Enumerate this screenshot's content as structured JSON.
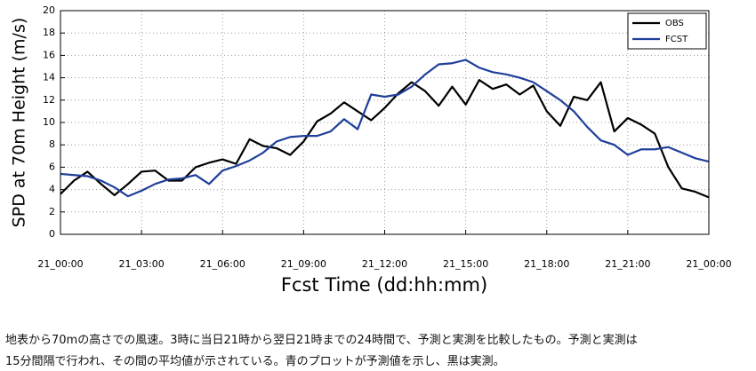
{
  "chart_data": {
    "type": "line",
    "ylabel": "SPD at 70m Height (m/s)",
    "xlabel": "Fcst Time (dd:hh:mm)",
    "x": [
      0,
      0.5,
      1,
      1.5,
      2,
      2.5,
      3,
      3.5,
      4,
      4.5,
      5,
      5.5,
      6,
      6.5,
      7,
      7.5,
      8,
      8.5,
      9,
      9.5,
      10,
      10.5,
      11,
      11.5,
      12,
      12.5,
      13,
      13.5,
      14,
      14.5,
      15,
      15.5,
      16,
      16.5,
      17,
      17.5,
      18,
      18.5,
      19,
      19.5,
      20,
      20.5,
      21,
      21.5,
      22,
      22.5,
      23,
      23.5,
      24
    ],
    "series": [
      {
        "name": "OBS",
        "color": "#000000",
        "values": [
          3.6,
          4.8,
          5.6,
          4.5,
          3.5,
          4.5,
          5.6,
          5.7,
          4.8,
          4.8,
          6.0,
          6.4,
          6.7,
          6.3,
          8.5,
          7.9,
          7.7,
          7.1,
          8.3,
          10.1,
          10.8,
          11.8,
          11.0,
          10.2,
          11.3,
          12.6,
          13.6,
          12.8,
          11.5,
          13.2,
          11.6,
          13.8,
          13.0,
          13.4,
          12.5,
          13.3,
          11.0,
          9.7,
          12.3,
          12.0,
          13.6,
          9.2,
          10.4,
          9.8,
          9.0,
          6.0,
          4.1,
          3.8,
          3.3
        ]
      },
      {
        "name": "FCST",
        "color": "#1f3f99",
        "values": [
          5.4,
          5.3,
          5.2,
          4.8,
          4.2,
          3.4,
          3.9,
          4.5,
          4.9,
          5.0,
          5.3,
          4.5,
          5.7,
          6.1,
          6.6,
          7.3,
          8.3,
          8.7,
          8.8,
          8.8,
          9.2,
          10.3,
          9.4,
          12.5,
          12.3,
          12.5,
          13.2,
          14.3,
          15.2,
          15.3,
          15.6,
          14.9,
          14.5,
          14.3,
          14.0,
          13.6,
          12.8,
          12.0,
          11.0,
          9.6,
          8.4,
          8.0,
          7.1,
          7.6,
          7.6,
          7.8,
          7.3,
          6.8,
          6.5
        ]
      }
    ],
    "xlim": [
      0,
      24
    ],
    "xticks": [
      {
        "value": 0,
        "label": "21_00:00"
      },
      {
        "value": 3,
        "label": "21_03:00"
      },
      {
        "value": 6,
        "label": "21_06:00"
      },
      {
        "value": 9,
        "label": "21_09:00"
      },
      {
        "value": 12,
        "label": "21_12:00"
      },
      {
        "value": 15,
        "label": "21_15:00"
      },
      {
        "value": 18,
        "label": "21_18:00"
      },
      {
        "value": 21,
        "label": "21_21:00"
      },
      {
        "value": 24,
        "label": "21_00:00"
      }
    ],
    "ylim": [
      0,
      20
    ],
    "yticks": [
      0,
      2,
      4,
      6,
      8,
      10,
      12,
      14,
      16,
      18,
      20
    ],
    "grid": true,
    "legend": "upper right",
    "caption": [
      "地表から70mの高さでの風速。3時に当日21時から翌日21時までの24時間で、予測と実測を比較したもの。予測と実測は",
      "15分間隔で行われ、その間の平均値が示されている。青のプロットが予測値を示し、黒は実測。"
    ]
  }
}
